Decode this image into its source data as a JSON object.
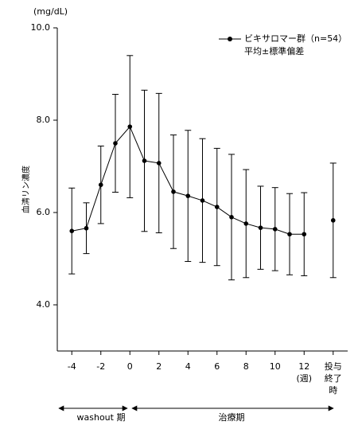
{
  "chart_data": {
    "type": "line",
    "y_unit": "(mg/dL)",
    "ylabel": "血清リン濃度",
    "legend": {
      "series": "ビキサロマー群（n=54）",
      "note": "平均±標準偏差"
    },
    "annotations": [
      "washout 期",
      "治療期"
    ],
    "x": [
      -4,
      -3,
      -2,
      -1,
      0,
      1,
      2,
      3,
      4,
      5,
      6,
      7,
      8,
      9,
      10,
      11,
      12,
      13,
      14
    ],
    "series": [
      {
        "name": "ビキサロマー群（n=54）",
        "color": "#000000",
        "values": [
          5.6,
          5.66,
          6.6,
          7.5,
          7.86,
          7.12,
          7.07,
          6.45,
          6.36,
          6.26,
          6.12,
          5.9,
          5.76,
          5.67,
          5.64,
          5.53,
          5.53,
          null,
          5.83
        ],
        "errors": [
          0.93,
          0.55,
          0.84,
          1.06,
          1.54,
          1.53,
          1.51,
          1.23,
          1.42,
          1.34,
          1.27,
          1.36,
          1.17,
          0.9,
          0.9,
          0.88,
          0.9,
          null,
          1.24
        ]
      }
    ],
    "xlim": [
      -5,
      15
    ],
    "ylim": [
      3,
      10
    ],
    "xticks": [
      -4,
      -2,
      0,
      2,
      4,
      6,
      8,
      10,
      {
        "value": 12,
        "label": "12\n(週)"
      },
      {
        "value": 14,
        "label": "投与\n終了\n時"
      }
    ],
    "yticks": [
      {
        "value": 4,
        "label": "4.0"
      },
      {
        "value": 6,
        "label": "6.0"
      },
      {
        "value": 8,
        "label": "8.0"
      },
      {
        "value": 10,
        "label": "10.0"
      }
    ],
    "grid": false
  }
}
